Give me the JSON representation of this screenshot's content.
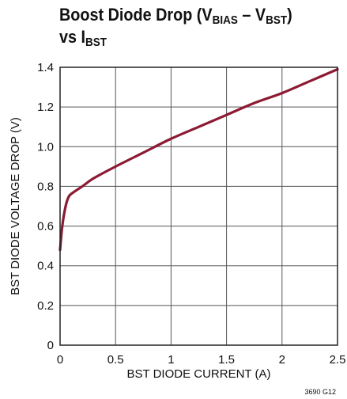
{
  "title": {
    "line1": {
      "lead": "Boost Diode Drop (V",
      "sub1": "BIAS",
      "mid": " – V",
      "sub2": "BST",
      "tail": ")"
    },
    "line2": {
      "lead": "vs I",
      "sub": "BST"
    }
  },
  "figure_number": "3690 G12",
  "chart_data": {
    "type": "line",
    "xlabel": "BST DIODE CURRENT (A)",
    "ylabel": "BST DIODE VOLTAGE DROP (V)",
    "xlim": [
      0,
      2.5
    ],
    "ylim": [
      0,
      1.4
    ],
    "xticks": [
      0,
      0.5,
      1,
      1.5,
      2,
      2.5
    ],
    "xtick_labels": [
      "0",
      "0.5",
      "1",
      "1.5",
      "2",
      "2.5"
    ],
    "yticks": [
      0,
      0.2,
      0.4,
      0.6,
      0.8,
      1.0,
      1.2,
      1.4
    ],
    "ytick_labels": [
      "0",
      "0.2",
      "0.4",
      "0.6",
      "0.8",
      "1.0",
      "1.2",
      "1.4"
    ],
    "grid": true,
    "line_color": "#8b1a32",
    "series": [
      {
        "x": [
          0,
          0.02,
          0.05,
          0.08,
          0.12,
          0.2,
          0.3,
          0.5,
          0.75,
          1.0,
          1.25,
          1.5,
          1.75,
          2.0,
          2.25,
          2.5
        ],
        "y": [
          0.48,
          0.6,
          0.7,
          0.75,
          0.77,
          0.8,
          0.84,
          0.9,
          0.97,
          1.04,
          1.1,
          1.16,
          1.22,
          1.27,
          1.33,
          1.39
        ]
      }
    ]
  }
}
